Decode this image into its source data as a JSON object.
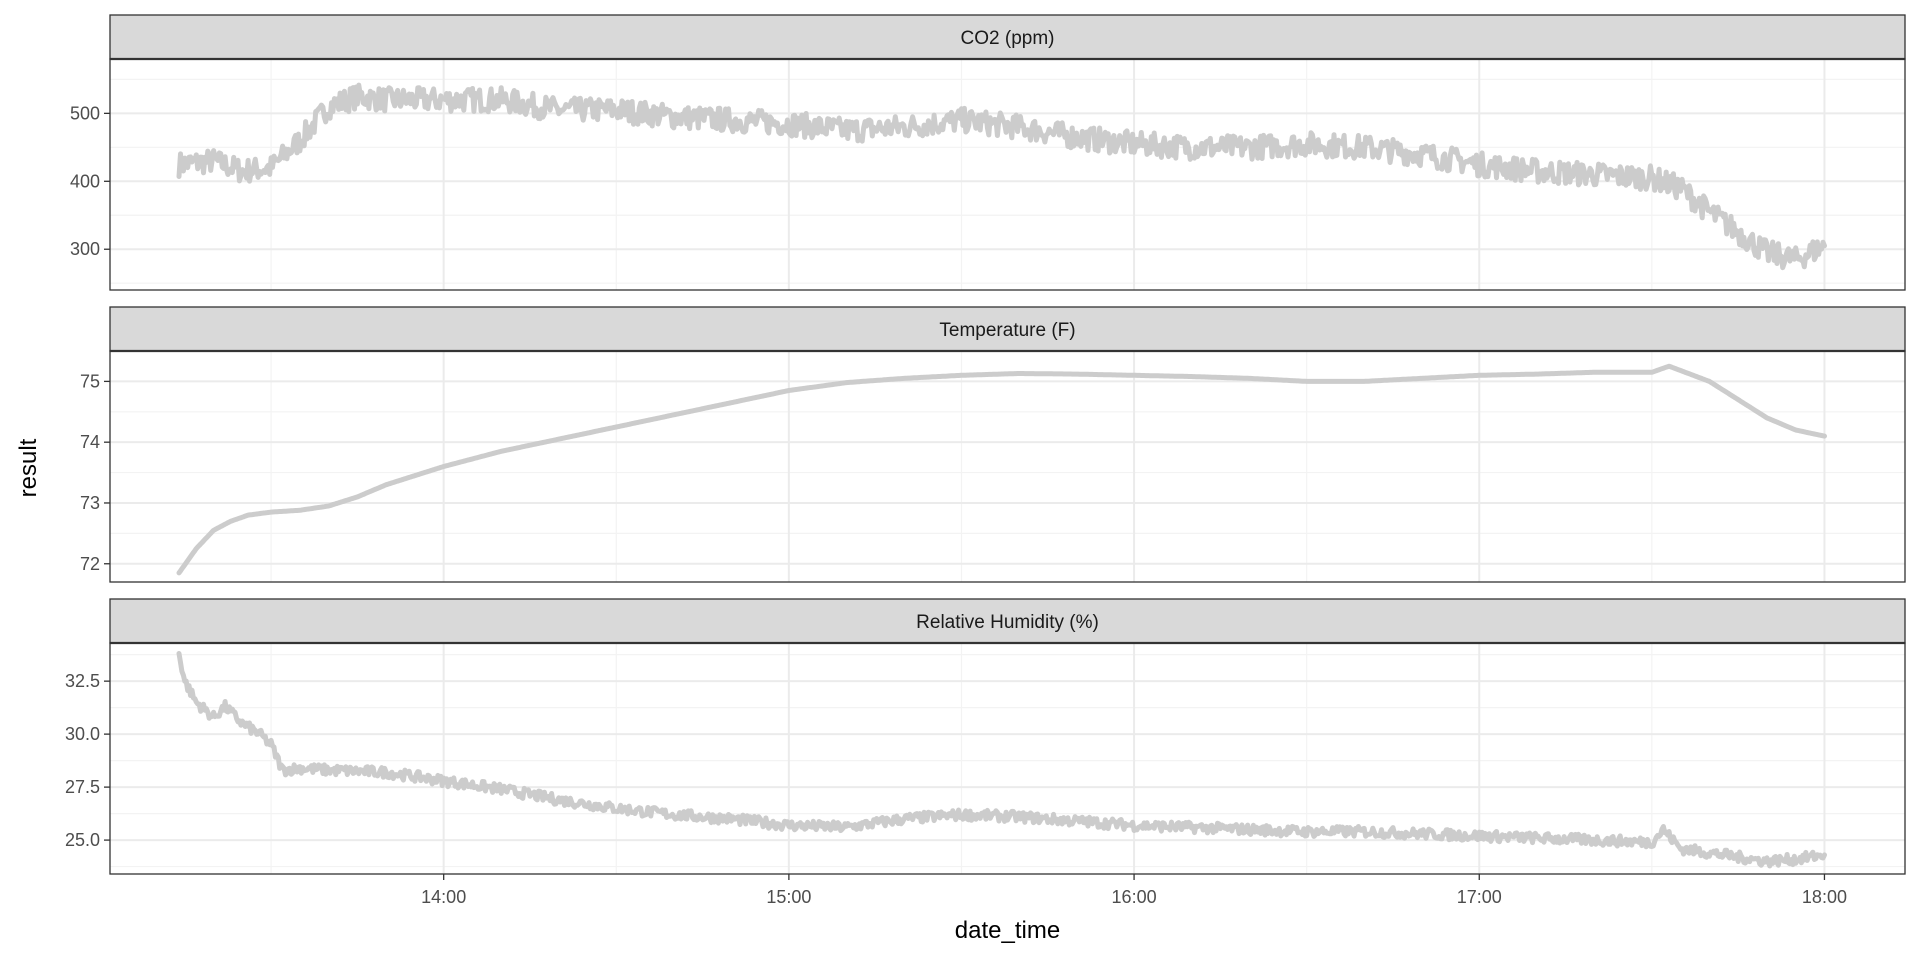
{
  "chart_data": {
    "type": "line",
    "xlabel": "date_time",
    "ylabel": "result",
    "x_ticks": [
      "14:00",
      "15:00",
      "16:00",
      "17:00",
      "18:00"
    ],
    "xlim": [
      "13:02",
      "18:14"
    ],
    "grid": true,
    "legend": "none",
    "colors": {
      "line": "#cccccc",
      "strip_fill": "#d9d9d9",
      "strip_border": "#333333",
      "panel_border": "#333333",
      "grid_major": "#ebebeb",
      "grid_minor": "#f3f3f3"
    },
    "panels": [
      {
        "title": "CO2 (ppm)",
        "ylim": [
          240,
          580
        ],
        "y_ticks": [
          300,
          400,
          500
        ],
        "y_tick_labels": [
          "300",
          "400",
          "500"
        ],
        "series": [
          {
            "x": [
              "13:14",
              "13:20",
              "13:25",
              "13:30",
              "13:35",
              "13:40",
              "13:45",
              "13:50",
              "14:00",
              "14:10",
              "14:20",
              "14:30",
              "14:40",
              "14:50",
              "15:00",
              "15:10",
              "15:20",
              "15:30",
              "15:40",
              "15:50",
              "16:00",
              "16:10",
              "16:20",
              "16:30",
              "16:40",
              "16:50",
              "17:00",
              "17:10",
              "17:20",
              "17:30",
              "17:35",
              "17:40",
              "17:45",
              "17:50",
              "17:55",
              "18:00"
            ],
            "y": [
              425,
              430,
              415,
              420,
              460,
              510,
              525,
              520,
              520,
              520,
              505,
              505,
              495,
              490,
              485,
              475,
              480,
              490,
              480,
              465,
              455,
              450,
              450,
              455,
              450,
              440,
              425,
              415,
              410,
              405,
              390,
              355,
              325,
              295,
              285,
              305
            ],
            "noise": 18
          }
        ]
      },
      {
        "title": "Temperature (F)",
        "ylim": [
          71.7,
          75.5
        ],
        "y_ticks": [
          72,
          73,
          74,
          75
        ],
        "y_tick_labels": [
          "72",
          "73",
          "74",
          "75"
        ],
        "series": [
          {
            "x": [
              "13:14",
              "13:17",
              "13:20",
              "13:23",
              "13:26",
              "13:30",
              "13:35",
              "13:40",
              "13:45",
              "13:50",
              "14:00",
              "14:10",
              "14:20",
              "14:30",
              "14:40",
              "14:50",
              "15:00",
              "15:10",
              "15:20",
              "15:30",
              "15:40",
              "15:50",
              "16:00",
              "16:10",
              "16:20",
              "16:30",
              "16:40",
              "16:50",
              "17:00",
              "17:10",
              "17:20",
              "17:30",
              "17:33",
              "17:40",
              "17:45",
              "17:50",
              "17:55",
              "18:00"
            ],
            "y": [
              71.85,
              72.25,
              72.55,
              72.7,
              72.8,
              72.85,
              72.88,
              72.95,
              73.1,
              73.3,
              73.6,
              73.85,
              74.05,
              74.25,
              74.45,
              74.65,
              74.85,
              74.98,
              75.05,
              75.1,
              75.13,
              75.12,
              75.1,
              75.08,
              75.05,
              75.0,
              75.0,
              75.05,
              75.1,
              75.12,
              75.15,
              75.15,
              75.25,
              75.0,
              74.7,
              74.4,
              74.2,
              74.1
            ],
            "noise": 0
          }
        ]
      },
      {
        "title": "Relative Humidity (%)",
        "ylim": [
          23.4,
          34.3
        ],
        "y_ticks": [
          25.0,
          27.5,
          30.0,
          32.5
        ],
        "y_tick_labels": [
          "25.0",
          "27.5",
          "30.0",
          "32.5"
        ],
        "series": [
          {
            "x": [
              "13:14",
              "13:15",
              "13:17",
              "13:20",
              "13:22",
              "13:25",
              "13:28",
              "13:30",
              "13:32",
              "13:35",
              "13:40",
              "13:50",
              "14:00",
              "14:10",
              "14:20",
              "14:30",
              "14:40",
              "14:50",
              "15:00",
              "15:10",
              "15:20",
              "15:30",
              "15:40",
              "15:50",
              "16:00",
              "16:10",
              "16:20",
              "16:30",
              "16:40",
              "16:50",
              "17:00",
              "17:10",
              "17:20",
              "17:30",
              "17:32",
              "17:35",
              "17:40",
              "17:50",
              "17:55",
              "18:00"
            ],
            "y": [
              33.8,
              32.5,
              31.5,
              30.8,
              31.3,
              30.5,
              30.0,
              29.5,
              28.3,
              28.4,
              28.3,
              28.2,
              27.8,
              27.4,
              26.9,
              26.5,
              26.2,
              26.0,
              25.7,
              25.6,
              26.0,
              26.2,
              26.1,
              25.9,
              25.7,
              25.6,
              25.5,
              25.4,
              25.4,
              25.3,
              25.2,
              25.1,
              25.0,
              24.9,
              25.5,
              24.6,
              24.4,
              24.0,
              24.1,
              24.3
            ],
            "noise": 0.25
          }
        ]
      }
    ]
  }
}
